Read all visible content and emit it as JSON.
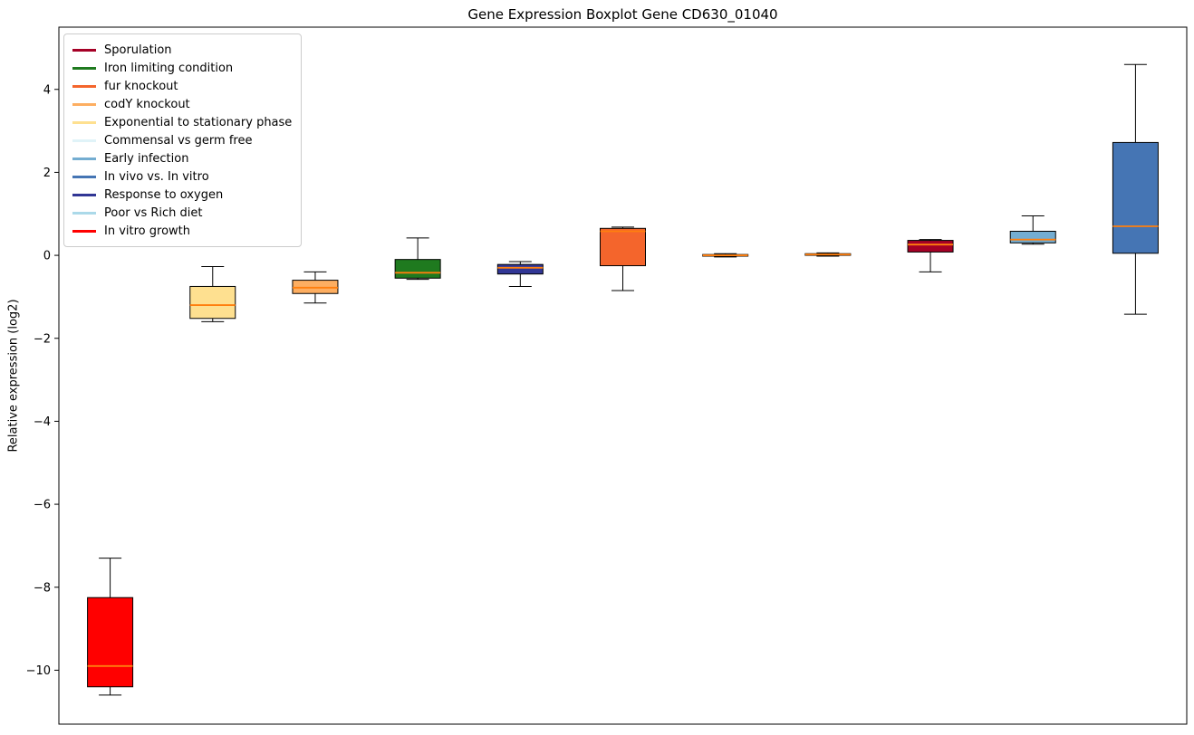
{
  "chart_data": {
    "type": "boxplot",
    "title": "Gene Expression Boxplot Gene CD630_01040",
    "ylabel": "Relative expression (log2)",
    "ylim": [
      -11.3,
      5.5
    ],
    "yticks": [
      4,
      2,
      0,
      -2,
      -4,
      -6,
      -8,
      -10
    ],
    "grid": false,
    "legend_position": "upper left",
    "median_color": "#ff7f0e",
    "legend": [
      {
        "name": "Sporulation",
        "color": "#a50026"
      },
      {
        "name": "Iron limiting condition",
        "color": "#1f7a1f"
      },
      {
        "name": "fur knockout",
        "color": "#f4652c"
      },
      {
        "name": "codY knockout",
        "color": "#fdae61"
      },
      {
        "name": "Exponential to stationary phase",
        "color": "#fee090"
      },
      {
        "name": "Commensal vs germ free",
        "color": "#e0f3f8"
      },
      {
        "name": "Early infection",
        "color": "#74add1"
      },
      {
        "name": "In vivo vs. In vitro",
        "color": "#4575b4"
      },
      {
        "name": "Response to oxygen",
        "color": "#313695"
      },
      {
        "name": "Poor vs Rich diet",
        "color": "#abd9e9"
      },
      {
        "name": "In vitro growth",
        "color": "#ff0000"
      }
    ],
    "groups": [
      {
        "name": "In vitro growth",
        "color": "#ff0000",
        "whislo": -10.6,
        "q1": -10.4,
        "med": -9.9,
        "q3": -8.25,
        "whishi": -7.3
      },
      {
        "name": "Exponential to stationary phase",
        "color": "#fee090",
        "whislo": -1.6,
        "q1": -1.52,
        "med": -1.2,
        "q3": -0.75,
        "whishi": -0.27
      },
      {
        "name": "codY knockout",
        "color": "#fdae61",
        "whislo": -1.15,
        "q1": -0.92,
        "med": -0.78,
        "q3": -0.6,
        "whishi": -0.4
      },
      {
        "name": "Iron limiting condition",
        "color": "#1f7a1f",
        "whislo": -0.58,
        "q1": -0.55,
        "med": -0.42,
        "q3": -0.1,
        "whishi": 0.42
      },
      {
        "name": "Response to oxygen",
        "color": "#313695",
        "whislo": -0.75,
        "q1": -0.45,
        "med": -0.3,
        "q3": -0.22,
        "whishi": -0.15
      },
      {
        "name": "fur knockout",
        "color": "#f4652c",
        "whislo": -0.85,
        "q1": -0.25,
        "med": 0.58,
        "q3": 0.65,
        "whishi": 0.68
      },
      {
        "name": "Commensal vs germ free",
        "color": "#e0f3f8",
        "whislo": -0.04,
        "q1": -0.02,
        "med": 0.0,
        "q3": 0.02,
        "whishi": 0.04
      },
      {
        "name": "Poor vs Rich diet",
        "color": "#abd9e9",
        "whislo": -0.02,
        "q1": 0.0,
        "med": 0.02,
        "q3": 0.04,
        "whishi": 0.06
      },
      {
        "name": "Sporulation",
        "color": "#a50026",
        "whislo": -0.4,
        "q1": 0.08,
        "med": 0.26,
        "q3": 0.36,
        "whishi": 0.38
      },
      {
        "name": "Early infection",
        "color": "#74add1",
        "whislo": 0.27,
        "q1": 0.3,
        "med": 0.38,
        "q3": 0.58,
        "whishi": 0.95
      },
      {
        "name": "In vivo vs. In vitro",
        "color": "#4575b4",
        "whislo": -1.42,
        "q1": 0.05,
        "med": 0.7,
        "q3": 2.72,
        "whishi": 4.6
      }
    ]
  }
}
